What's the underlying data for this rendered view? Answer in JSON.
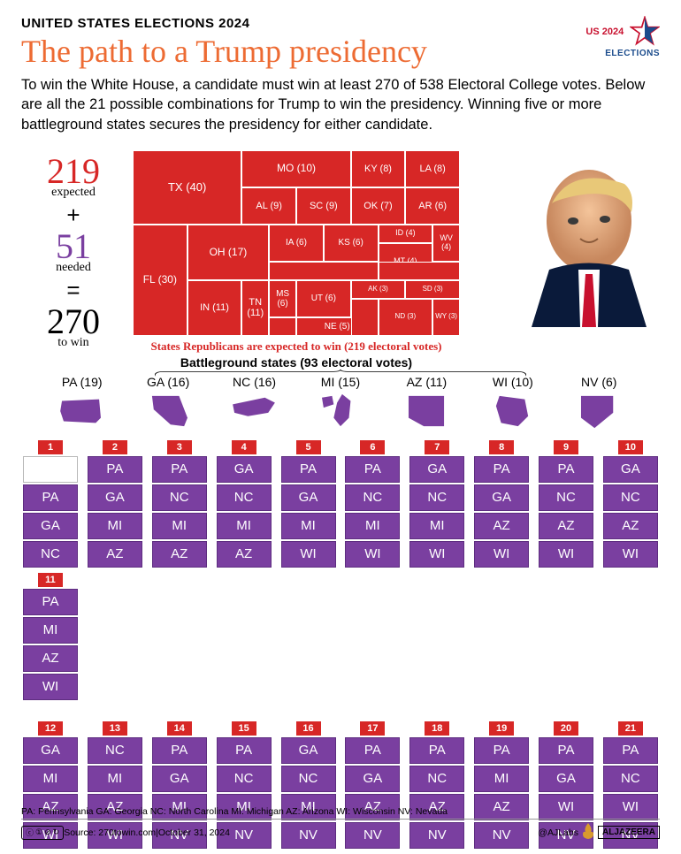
{
  "kicker": "UNITED STATES ELECTIONS 2024",
  "headline": "The path to a Trump presidency",
  "deck": "To win the White House, a candidate must win at least 270 of 538 Electoral College votes. Below are all the 21 possible combinations for Trump to win the presidency. Winning five or more battleground states secures the presidency for either candidate.",
  "logo": {
    "line1": "US 2024",
    "line2": "ELECTIONS"
  },
  "colors": {
    "red": "#d72726",
    "orange": "#ed6b33",
    "purple": "#7a3fa0",
    "white": "#ffffff",
    "black": "#000000",
    "grid_border": "#b8b8b8"
  },
  "math": {
    "expected_n": "219",
    "expected_label": "expected",
    "needed_n": "51",
    "needed_label": "needed",
    "towin_n": "270",
    "towin_label": "to win"
  },
  "treemap": {
    "caption1": "States Republicans are expected to win (219 electoral votes)",
    "caption2": "Battleground states (93 electoral votes)",
    "cells": [
      {
        "label": "TX (40)",
        "c": 1,
        "r": 1,
        "cs": 4,
        "rs": 4,
        "fs": 13
      },
      {
        "label": "FL (30)",
        "c": 1,
        "r": 5,
        "cs": 2,
        "rs": 6,
        "fs": 12
      },
      {
        "label": "OH (17)",
        "c": 3,
        "r": 5,
        "cs": 3,
        "rs": 3,
        "fs": 12
      },
      {
        "label": "IN (11)",
        "c": 3,
        "r": 8,
        "cs": 2,
        "rs": 3,
        "fs": 11
      },
      {
        "label": "TN (11)",
        "c": 5,
        "r": 8,
        "cs": 1,
        "rs": 3,
        "fs": 11
      },
      {
        "label": "MO (10)",
        "c": 5,
        "r": 1,
        "cs": 4,
        "rs": 2,
        "fs": 12
      },
      {
        "label": "AL (9)",
        "c": 5,
        "r": 3,
        "cs": 2,
        "rs": 2,
        "fs": 11
      },
      {
        "label": "SC (9)",
        "c": 7,
        "r": 3,
        "cs": 2,
        "rs": 2,
        "fs": 11
      },
      {
        "label": "KY (8)",
        "c": 9,
        "r": 1,
        "cs": 2,
        "rs": 2,
        "fs": 11
      },
      {
        "label": "LA (8)",
        "c": 11,
        "r": 1,
        "cs": 2,
        "rs": 2,
        "fs": 11
      },
      {
        "label": "OK (7)",
        "c": 9,
        "r": 3,
        "cs": 2,
        "rs": 2,
        "fs": 11
      },
      {
        "label": "AR (6)",
        "c": 11,
        "r": 3,
        "cs": 2,
        "rs": 2,
        "fs": 11
      },
      {
        "label": "IA (6)",
        "c": 6,
        "r": 5,
        "cs": 2,
        "rs": 2,
        "fs": 10
      },
      {
        "label": "KS (6)",
        "c": 8,
        "r": 5,
        "cs": 2,
        "rs": 2,
        "fs": 10
      },
      {
        "label": "MS (6)",
        "c": 6,
        "r": 8,
        "cs": 1,
        "rs": 2,
        "fs": 10
      },
      {
        "label": "UT (6)",
        "c": 7,
        "r": 8,
        "cs": 2,
        "rs": 2,
        "fs": 10
      },
      {
        "label": "NE (5)",
        "c": 7,
        "r": 10,
        "cs": 3,
        "rs": 1,
        "fs": 10
      },
      {
        "label": "ID (4)",
        "c": 10,
        "r": 5,
        "cs": 2,
        "rs": 1,
        "fs": 9
      },
      {
        "label": "WV (4)",
        "c": 12,
        "r": 5,
        "cs": 1,
        "rs": 2,
        "fs": 9
      },
      {
        "label": "MT (4)",
        "c": 10,
        "r": 6,
        "cs": 2,
        "rs": 2,
        "fs": 9
      },
      {
        "label": "AK (3)",
        "c": 9,
        "r": 8,
        "cs": 2,
        "rs": 1,
        "fs": 8
      },
      {
        "label": "SD (3)",
        "c": 11,
        "r": 8,
        "cs": 2,
        "rs": 1,
        "fs": 8
      },
      {
        "label": "ND (3)",
        "c": 10,
        "r": 9,
        "cs": 2,
        "rs": 2,
        "fs": 8
      },
      {
        "label": "WY (3)",
        "c": 12,
        "r": 9,
        "cs": 1,
        "rs": 2,
        "fs": 8
      },
      {
        "label": "",
        "c": 6,
        "r": 7,
        "cs": 4,
        "rs": 1,
        "fs": 8
      },
      {
        "label": "",
        "c": 6,
        "r": 10,
        "cs": 1,
        "rs": 1,
        "fs": 8
      },
      {
        "label": "",
        "c": 10,
        "r": 7,
        "cs": 3,
        "rs": 1,
        "fs": 8
      },
      {
        "label": "",
        "c": 9,
        "r": 9,
        "cs": 1,
        "rs": 2,
        "fs": 8
      }
    ]
  },
  "battleground_states": [
    {
      "code": "PA",
      "ev": 19,
      "label": "PA (19)"
    },
    {
      "code": "GA",
      "ev": 16,
      "label": "GA (16)"
    },
    {
      "code": "NC",
      "ev": 16,
      "label": "NC (16)"
    },
    {
      "code": "MI",
      "ev": 15,
      "label": "MI (15)"
    },
    {
      "code": "AZ",
      "ev": 11,
      "label": "AZ (11)"
    },
    {
      "code": "WI",
      "ev": 10,
      "label": "WI (10)"
    },
    {
      "code": "NV",
      "ev": 6,
      "label": "NV (6)"
    }
  ],
  "combinations_max_rows": 4,
  "combinations": [
    [
      "PA",
      "GA",
      "NC"
    ],
    [
      "PA",
      "GA",
      "MI",
      "AZ"
    ],
    [
      "PA",
      "NC",
      "MI",
      "AZ"
    ],
    [
      "GA",
      "NC",
      "MI",
      "AZ"
    ],
    [
      "PA",
      "GA",
      "MI",
      "WI"
    ],
    [
      "PA",
      "NC",
      "MI",
      "WI"
    ],
    [
      "GA",
      "NC",
      "MI",
      "WI"
    ],
    [
      "PA",
      "GA",
      "AZ",
      "WI"
    ],
    [
      "PA",
      "NC",
      "AZ",
      "WI"
    ],
    [
      "GA",
      "NC",
      "AZ",
      "WI"
    ],
    [
      "PA",
      "MI",
      "AZ",
      "WI"
    ],
    [
      "GA",
      "MI",
      "AZ",
      "WI"
    ],
    [
      "NC",
      "MI",
      "AZ",
      "WI"
    ],
    [
      "PA",
      "GA",
      "MI",
      "NV"
    ],
    [
      "PA",
      "NC",
      "MI",
      "NV"
    ],
    [
      "GA",
      "NC",
      "MI",
      "NV"
    ],
    [
      "PA",
      "GA",
      "AZ",
      "NV"
    ],
    [
      "PA",
      "NC",
      "AZ",
      "NV"
    ],
    [
      "PA",
      "MI",
      "AZ",
      "NV"
    ],
    [
      "PA",
      "GA",
      "WI",
      "NV"
    ],
    [
      "PA",
      "NC",
      "WI",
      "NV"
    ]
  ],
  "footer": {
    "legend": "PA: Pennsylvania GA: Georgia NC: North Carolina MI: Michigan AZ: Arizona WI: Wisconsin NV: Nevada",
    "source": "Source: 270towin.com",
    "date": "October 31, 2024",
    "handle": "@AJLabs",
    "brand": "ALJAZEERA",
    "cc": "CC BY NC SA"
  }
}
